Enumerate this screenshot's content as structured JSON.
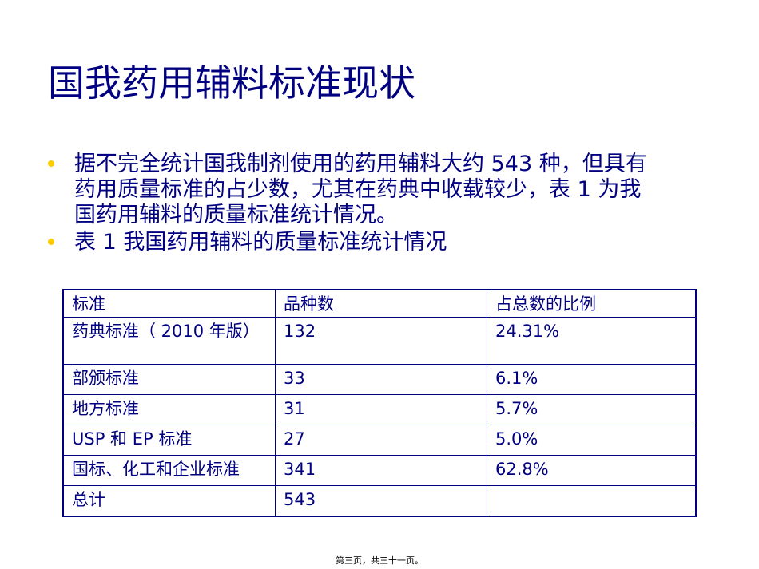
{
  "title": "国我药用辅料标准现状",
  "bullets": [
    "据不完全统计国我制剂使用的药用辅料大约 543 种，但具有药用质量标准的占少数，尤其在药典中收载较少，表 1 为我国药用辅料的质量标准统计情况。",
    "表 1 我国药用辅料的质量标准统计情况"
  ],
  "table": {
    "headers": [
      "标准",
      "品种数",
      "占总数的比例"
    ],
    "rows": [
      [
        "药典标准（ 2010 年版）",
        "132",
        "24.31%"
      ],
      [
        "部颁标准",
        "33",
        "6.1%"
      ],
      [
        "地方标准",
        "31",
        "5.7%"
      ],
      [
        "USP 和 EP 标准",
        "27",
        "5.0%"
      ],
      [
        "国标、化工和企业标准",
        "341",
        "62.8%"
      ],
      [
        "总计",
        "543",
        ""
      ]
    ]
  },
  "footer": "第三页，共三十一页。",
  "colors": {
    "text": "#000080",
    "bullet": "#ffcc00"
  }
}
